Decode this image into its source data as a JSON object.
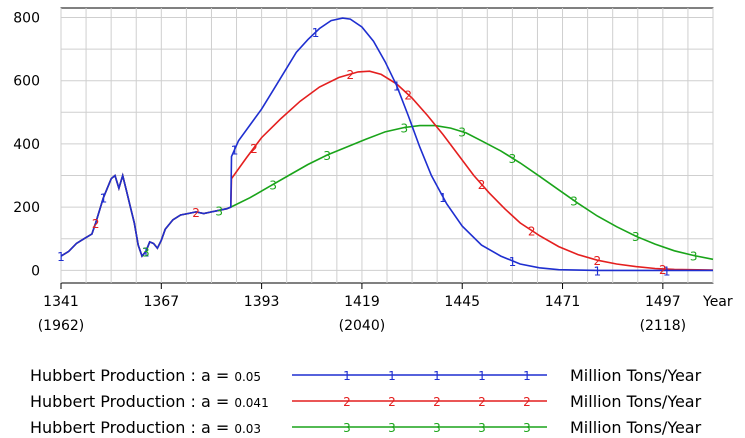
{
  "chart_data": {
    "type": "line",
    "xlabel": "Year",
    "x_ticks": [
      1341,
      1367,
      1393,
      1419,
      1445,
      1471,
      1497
    ],
    "x_subticks": [
      {
        "x": 1341,
        "label": "(1962)"
      },
      {
        "x": 1419,
        "label": "(2040)"
      },
      {
        "x": 1497,
        "label": "(2118)"
      }
    ],
    "y_ticks": [
      0,
      200,
      400,
      600,
      800
    ],
    "xlim": [
      1341,
      1510
    ],
    "ylim": [
      -40,
      830
    ],
    "grid": true,
    "series": [
      {
        "name": "Hubbert Production : a = 0.05",
        "unit": "Million Tons/Year",
        "color": "#1f2fd0",
        "marker": "1",
        "points": [
          [
            1341,
            45
          ],
          [
            1343,
            60
          ],
          [
            1345,
            85
          ],
          [
            1347,
            100
          ],
          [
            1349,
            115
          ],
          [
            1350,
            150
          ],
          [
            1352,
            230
          ],
          [
            1354,
            290
          ],
          [
            1355,
            300
          ],
          [
            1356,
            260
          ],
          [
            1357,
            300
          ],
          [
            1358,
            250
          ],
          [
            1359,
            200
          ],
          [
            1360,
            150
          ],
          [
            1361,
            80
          ],
          [
            1362,
            45
          ],
          [
            1363,
            60
          ],
          [
            1364,
            90
          ],
          [
            1365,
            85
          ],
          [
            1366,
            70
          ],
          [
            1367,
            95
          ],
          [
            1368,
            130
          ],
          [
            1370,
            160
          ],
          [
            1372,
            175
          ],
          [
            1374,
            180
          ],
          [
            1376,
            185
          ],
          [
            1378,
            180
          ],
          [
            1380,
            185
          ],
          [
            1382,
            190
          ],
          [
            1384,
            195
          ],
          [
            1385,
            200
          ],
          [
            1385.2,
            360
          ],
          [
            1387,
            410
          ],
          [
            1390,
            460
          ],
          [
            1393,
            510
          ],
          [
            1396,
            570
          ],
          [
            1399,
            630
          ],
          [
            1402,
            690
          ],
          [
            1405,
            730
          ],
          [
            1408,
            765
          ],
          [
            1411,
            790
          ],
          [
            1414,
            798
          ],
          [
            1416,
            795
          ],
          [
            1419,
            770
          ],
          [
            1422,
            725
          ],
          [
            1425,
            660
          ],
          [
            1428,
            585
          ],
          [
            1431,
            490
          ],
          [
            1434,
            390
          ],
          [
            1437,
            300
          ],
          [
            1441,
            210
          ],
          [
            1445,
            140
          ],
          [
            1450,
            80
          ],
          [
            1455,
            45
          ],
          [
            1460,
            20
          ],
          [
            1465,
            8
          ],
          [
            1470,
            2
          ],
          [
            1480,
            0
          ],
          [
            1495,
            0
          ],
          [
            1510,
            0
          ]
        ]
      },
      {
        "name": "Hubbert Production : a = 0.041",
        "unit": "Million Tons/Year",
        "color": "#e41f1f",
        "marker": "2",
        "points": [
          [
            1341,
            45
          ],
          [
            1343,
            60
          ],
          [
            1345,
            85
          ],
          [
            1347,
            100
          ],
          [
            1349,
            115
          ],
          [
            1350,
            150
          ],
          [
            1352,
            230
          ],
          [
            1354,
            290
          ],
          [
            1355,
            300
          ],
          [
            1356,
            260
          ],
          [
            1357,
            300
          ],
          [
            1358,
            250
          ],
          [
            1359,
            200
          ],
          [
            1360,
            150
          ],
          [
            1361,
            80
          ],
          [
            1362,
            45
          ],
          [
            1363,
            60
          ],
          [
            1364,
            90
          ],
          [
            1365,
            85
          ],
          [
            1366,
            70
          ],
          [
            1367,
            95
          ],
          [
            1368,
            130
          ],
          [
            1370,
            160
          ],
          [
            1372,
            175
          ],
          [
            1374,
            180
          ],
          [
            1376,
            185
          ],
          [
            1378,
            180
          ],
          [
            1380,
            185
          ],
          [
            1382,
            190
          ],
          [
            1384,
            195
          ],
          [
            1385,
            200
          ],
          [
            1385.2,
            290
          ],
          [
            1389,
            355
          ],
          [
            1393,
            420
          ],
          [
            1398,
            480
          ],
          [
            1403,
            535
          ],
          [
            1408,
            580
          ],
          [
            1413,
            610
          ],
          [
            1418,
            628
          ],
          [
            1421,
            630
          ],
          [
            1424,
            620
          ],
          [
            1428,
            590
          ],
          [
            1432,
            545
          ],
          [
            1436,
            490
          ],
          [
            1440,
            430
          ],
          [
            1444,
            365
          ],
          [
            1448,
            300
          ],
          [
            1452,
            245
          ],
          [
            1456,
            195
          ],
          [
            1460,
            150
          ],
          [
            1465,
            110
          ],
          [
            1470,
            75
          ],
          [
            1475,
            50
          ],
          [
            1480,
            32
          ],
          [
            1485,
            20
          ],
          [
            1490,
            12
          ],
          [
            1495,
            6
          ],
          [
            1500,
            3
          ],
          [
            1510,
            1
          ]
        ]
      },
      {
        "name": "Hubbert Production : a = 0.03",
        "unit": "Million Tons/Year",
        "color": "#1aa41a",
        "marker": "3",
        "points": [
          [
            1341,
            45
          ],
          [
            1343,
            60
          ],
          [
            1345,
            85
          ],
          [
            1347,
            100
          ],
          [
            1349,
            115
          ],
          [
            1350,
            150
          ],
          [
            1352,
            230
          ],
          [
            1354,
            290
          ],
          [
            1355,
            300
          ],
          [
            1356,
            260
          ],
          [
            1357,
            300
          ],
          [
            1358,
            250
          ],
          [
            1359,
            200
          ],
          [
            1360,
            150
          ],
          [
            1361,
            80
          ],
          [
            1362,
            45
          ],
          [
            1363,
            60
          ],
          [
            1364,
            90
          ],
          [
            1365,
            85
          ],
          [
            1366,
            70
          ],
          [
            1367,
            95
          ],
          [
            1368,
            130
          ],
          [
            1370,
            160
          ],
          [
            1372,
            175
          ],
          [
            1374,
            180
          ],
          [
            1376,
            185
          ],
          [
            1378,
            180
          ],
          [
            1380,
            185
          ],
          [
            1382,
            190
          ],
          [
            1384,
            195
          ],
          [
            1385,
            200
          ],
          [
            1390,
            230
          ],
          [
            1395,
            265
          ],
          [
            1400,
            300
          ],
          [
            1405,
            335
          ],
          [
            1410,
            365
          ],
          [
            1415,
            390
          ],
          [
            1420,
            415
          ],
          [
            1425,
            438
          ],
          [
            1430,
            452
          ],
          [
            1434,
            458
          ],
          [
            1438,
            458
          ],
          [
            1442,
            450
          ],
          [
            1446,
            435
          ],
          [
            1450,
            410
          ],
          [
            1455,
            378
          ],
          [
            1460,
            340
          ],
          [
            1465,
            298
          ],
          [
            1470,
            255
          ],
          [
            1475,
            212
          ],
          [
            1480,
            172
          ],
          [
            1485,
            138
          ],
          [
            1490,
            108
          ],
          [
            1495,
            83
          ],
          [
            1500,
            62
          ],
          [
            1505,
            47
          ],
          [
            1510,
            35
          ]
        ]
      }
    ],
    "markers": [
      {
        "series": 0,
        "x": [
          1341,
          1352,
          1363,
          1386,
          1407,
          1428,
          1440,
          1458,
          1480,
          1498
        ]
      },
      {
        "series": 1,
        "x": [
          1350,
          1376,
          1391,
          1416,
          1431,
          1450,
          1463,
          1480,
          1497
        ]
      },
      {
        "series": 2,
        "x": [
          1363,
          1382,
          1396,
          1410,
          1430,
          1445,
          1458,
          1474,
          1490,
          1505
        ]
      }
    ]
  },
  "legend": [
    {
      "name": "Hubbert Production : a = ",
      "param": "0.05",
      "marker": "1",
      "unit": "Million Tons/Year",
      "color": "#1f2fd0"
    },
    {
      "name": "Hubbert Production : a = ",
      "param": "0.041",
      "marker": "2",
      "unit": "Million Tons/Year",
      "color": "#e41f1f"
    },
    {
      "name": "Hubbert Production : a = ",
      "param": "0.03",
      "marker": "3",
      "unit": "Million Tons/Year",
      "color": "#1aa41a"
    }
  ]
}
